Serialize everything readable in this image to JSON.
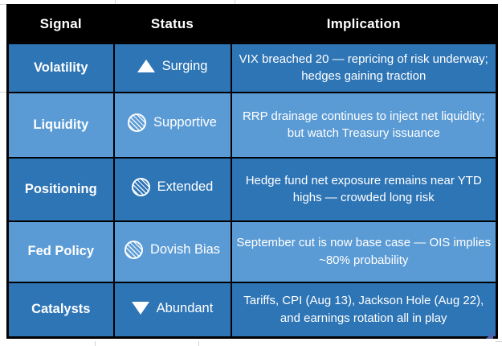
{
  "colors": {
    "header_bg": "#000000",
    "row_dark": "#2E75B6",
    "row_light": "#5B9BD5",
    "border": "#000000",
    "text": "#FFFFFF",
    "corner_marker": "#5560A8"
  },
  "table": {
    "headers": [
      "Signal",
      "Status",
      "Implication"
    ],
    "rows": [
      {
        "signal": "Volatility",
        "icon": "triangle-up",
        "status": "Surging",
        "implication": "VIX breached 20 — repricing of risk underway; hedges gaining traction"
      },
      {
        "signal": "Liquidity",
        "icon": "hatched-circle",
        "status": "Supportive",
        "implication": "RRP drainage continues to inject net liquidity; but watch Treasury issuance"
      },
      {
        "signal": "Positioning",
        "icon": "hatched-circle",
        "status": "Extended",
        "implication": "Hedge fund net exposure remains near YTD highs — crowded long risk"
      },
      {
        "signal": "Fed Policy",
        "icon": "hatched-circle",
        "status": "Dovish Bias",
        "implication": "September cut is now base case — OIS implies ~80% probability"
      },
      {
        "signal": "Catalysts",
        "icon": "triangle-down",
        "status": "Abundant",
        "implication": "Tariffs, CPI (Aug 13), Jackson Hole (Aug 22), and earnings rotation all in play"
      }
    ]
  },
  "chart_data": {
    "type": "table",
    "title": "",
    "columns": [
      "Signal",
      "Status",
      "Implication"
    ],
    "rows": [
      [
        "Volatility",
        "▲ Surging",
        "VIX breached 20 — repricing of risk underway; hedges gaining traction"
      ],
      [
        "Liquidity",
        "◍ Supportive",
        "RRP drainage continues to inject net liquidity; but watch Treasury issuance"
      ],
      [
        "Positioning",
        "◍ Extended",
        "Hedge fund net exposure remains near YTD highs — crowded long risk"
      ],
      [
        "Fed Policy",
        "◍ Dovish Bias",
        "September cut is now base case — OIS implies ~80% probability"
      ],
      [
        "Catalysts",
        "▼ Abundant",
        "Tariffs, CPI (Aug 13), Jackson Hole (Aug 22), and earnings rotation all in play"
      ]
    ],
    "layout_hints": {
      "header_style": "black background, white bold text",
      "row_fill_alternation": [
        "dark-blue",
        "light-blue",
        "dark-blue",
        "light-blue",
        "dark-blue"
      ],
      "grid": "on"
    }
  }
}
